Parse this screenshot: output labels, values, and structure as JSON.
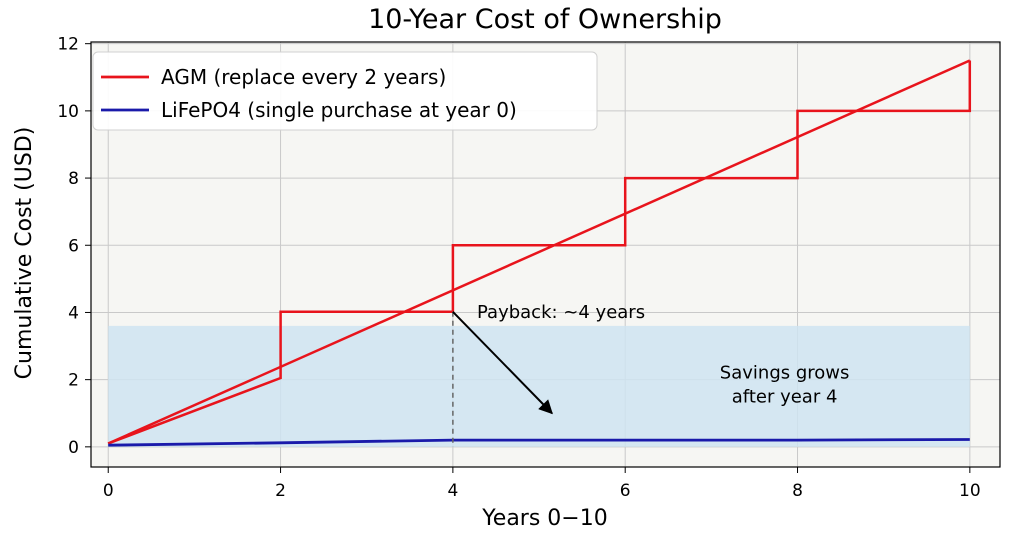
{
  "chart_data": {
    "type": "line",
    "title": "10-Year Cost of Ownership",
    "xlabel": "Years 0−10",
    "ylabel": "Cumulative Cost (USD)",
    "xlim": [
      -0.2,
      10.35
    ],
    "ylim": [
      -0.6,
      12.05
    ],
    "xticks": [
      0,
      2,
      4,
      6,
      8,
      10
    ],
    "yticks": [
      0,
      2,
      4,
      6,
      8,
      10,
      12
    ],
    "grid": true,
    "legend_position": "top-left",
    "series": [
      {
        "name": "AGM (replace every 2 years)",
        "color": "#e8141c",
        "step_x": [
          0,
          2,
          2,
          4,
          4,
          6,
          6,
          8,
          8,
          10,
          10
        ],
        "step_y": [
          0.1,
          2.05,
          4.02,
          4.02,
          6.0,
          6.0,
          8.0,
          8.0,
          10.0,
          10.0,
          11.5
        ],
        "trend_x": [
          0,
          10
        ],
        "trend_y": [
          0.1,
          11.5
        ]
      },
      {
        "name": "LiFePO4 (single purchase at year 0)",
        "color": "#1a1aaa",
        "x": [
          0,
          2,
          4,
          6,
          8,
          10
        ],
        "y": [
          0.05,
          0.12,
          0.2,
          0.2,
          0.2,
          0.22
        ]
      }
    ],
    "shaded_region": {
      "x": [
        0,
        10
      ],
      "y": [
        0,
        3.6
      ],
      "color": "#cfe4f1"
    },
    "annotations": {
      "payback_text": "Payback: ~4 years",
      "payback_point": [
        4,
        4.02
      ],
      "arrow_end": [
        5.15,
        1.0
      ],
      "text_anchor": [
        4.28,
        4.02
      ],
      "savings_line1": "Savings grows",
      "savings_line2": "after year 4",
      "savings_anchor": [
        7.85,
        2.0
      ]
    }
  }
}
